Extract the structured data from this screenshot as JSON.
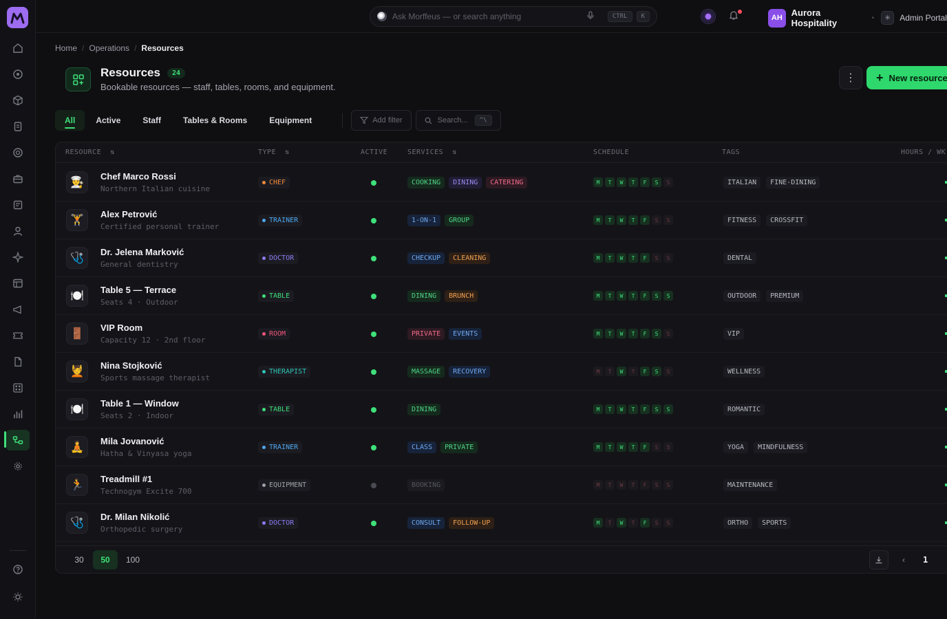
{
  "topbar": {
    "search_placeholder": "Ask Morffeus — or search anything",
    "kbd_ctrl": "CTRL",
    "kbd_k": "K",
    "org_initials": "AH",
    "org_name": "Aurora Hospitality",
    "admin_label": "Admin Portal"
  },
  "breadcrumb": {
    "home": "Home",
    "section": "Operations",
    "current": "Resources"
  },
  "header": {
    "title": "Resources",
    "count": "24",
    "subtitle": "Bookable resources — staff, tables, rooms, and equipment.",
    "new_button": "New resource"
  },
  "tabs": [
    "All",
    "Active",
    "Staff",
    "Tables & Rooms",
    "Equipment"
  ],
  "filters": {
    "add_filter": "Add filter",
    "search_placeholder": "Search...",
    "search_kbd": "^\\"
  },
  "table": {
    "headers": {
      "resource": "RESOURCE",
      "type": "TYPE",
      "active": "ACTIVE",
      "services": "SERVICES",
      "schedule": "SCHEDULE",
      "tags": "TAGS",
      "hours": "HOURS / WK"
    },
    "days": [
      "M",
      "T",
      "W",
      "T",
      "F",
      "S",
      "S"
    ],
    "rows": [
      {
        "name": "Chef Marco Rossi",
        "desc": "Northern Italian cuisine",
        "avatar": "👨‍🍳",
        "type": "CHEF",
        "type_color": "#f08a3c",
        "active": true,
        "services": [
          {
            "label": "COOKING",
            "tone": "green"
          },
          {
            "label": "DINING",
            "tone": "purple"
          },
          {
            "label": "CATERING",
            "tone": "pink"
          }
        ],
        "schedule": [
          1,
          1,
          1,
          1,
          1,
          1,
          0
        ],
        "tags": [
          "ITALIAN",
          "FINE-DINING"
        ]
      },
      {
        "name": "Alex Petrović",
        "desc": "Certified personal trainer",
        "avatar": "🏋️",
        "type": "TRAINER",
        "type_color": "#4ea8f0",
        "active": true,
        "services": [
          {
            "label": "1-ON-1",
            "tone": "blue"
          },
          {
            "label": "GROUP",
            "tone": "green"
          }
        ],
        "schedule": [
          1,
          1,
          1,
          1,
          1,
          0,
          0
        ],
        "tags": [
          "FITNESS",
          "CROSSFIT"
        ]
      },
      {
        "name": "Dr. Jelena Marković",
        "desc": "General dentistry",
        "avatar": "🩺",
        "type": "DOCTOR",
        "type_color": "#8c7cf5",
        "active": true,
        "services": [
          {
            "label": "CHECKUP",
            "tone": "blue"
          },
          {
            "label": "CLEANING",
            "tone": "orange"
          }
        ],
        "schedule": [
          1,
          1,
          1,
          1,
          1,
          0,
          0
        ],
        "tags": [
          "DENTAL"
        ]
      },
      {
        "name": "Table 5 — Terrace",
        "desc": "Seats 4 · Outdoor",
        "avatar": "🍽️",
        "type": "TABLE",
        "type_color": "#3ee07a",
        "active": true,
        "services": [
          {
            "label": "DINING",
            "tone": "green"
          },
          {
            "label": "BRUNCH",
            "tone": "orange"
          }
        ],
        "schedule": [
          1,
          1,
          1,
          1,
          1,
          1,
          1
        ],
        "tags": [
          "OUTDOOR",
          "PREMIUM"
        ]
      },
      {
        "name": "VIP Room",
        "desc": "Capacity 12 · 2nd floor",
        "avatar": "🚪",
        "type": "ROOM",
        "type_color": "#f0567a",
        "active": true,
        "services": [
          {
            "label": "PRIVATE",
            "tone": "pink"
          },
          {
            "label": "EVENTS",
            "tone": "blue"
          }
        ],
        "schedule": [
          1,
          1,
          1,
          1,
          1,
          1,
          0
        ],
        "tags": [
          "VIP"
        ]
      },
      {
        "name": "Nina Stojković",
        "desc": "Sports massage therapist",
        "avatar": "💆",
        "type": "THERAPIST",
        "type_color": "#2ec4b6",
        "active": true,
        "services": [
          {
            "label": "MASSAGE",
            "tone": "green"
          },
          {
            "label": "RECOVERY",
            "tone": "blue"
          }
        ],
        "schedule": [
          0,
          0,
          1,
          0,
          1,
          1,
          0
        ],
        "tags": [
          "WELLNESS"
        ]
      },
      {
        "name": "Table 1 — Window",
        "desc": "Seats 2 · Indoor",
        "avatar": "🍽️",
        "type": "TABLE",
        "type_color": "#3ee07a",
        "active": true,
        "services": [
          {
            "label": "DINING",
            "tone": "green"
          }
        ],
        "schedule": [
          1,
          1,
          1,
          1,
          1,
          1,
          1
        ],
        "tags": [
          "ROMANTIC"
        ]
      },
      {
        "name": "Mila Jovanović",
        "desc": "Hatha & Vinyasa yoga",
        "avatar": "🧘",
        "type": "TRAINER",
        "type_color": "#4ea8f0",
        "active": true,
        "services": [
          {
            "label": "CLASS",
            "tone": "blue"
          },
          {
            "label": "PRIVATE",
            "tone": "green"
          }
        ],
        "schedule": [
          1,
          1,
          1,
          1,
          1,
          0,
          0
        ],
        "tags": [
          "YOGA",
          "MINDFULNESS"
        ]
      },
      {
        "name": "Treadmill #1",
        "desc": "Technogym Excite 700",
        "avatar": "🏃",
        "type": "EQUIPMENT",
        "type_color": "#a0a0aa",
        "active": false,
        "services": [
          {
            "label": "BOOKING",
            "tone": "muted"
          }
        ],
        "schedule": [
          0,
          0,
          0,
          0,
          0,
          0,
          0
        ],
        "tags": [
          "MAINTENANCE"
        ]
      },
      {
        "name": "Dr. Milan Nikolić",
        "desc": "Orthopedic surgery",
        "avatar": "🩺",
        "type": "DOCTOR",
        "type_color": "#8c7cf5",
        "active": true,
        "services": [
          {
            "label": "CONSULT",
            "tone": "blue"
          },
          {
            "label": "FOLLOW-UP",
            "tone": "orange"
          }
        ],
        "schedule": [
          1,
          0,
          1,
          0,
          1,
          0,
          0
        ],
        "tags": [
          "ORTHO",
          "SPORTS"
        ]
      }
    ]
  },
  "pagination": {
    "sizes": [
      "30",
      "50",
      "100"
    ],
    "active_size": "50",
    "page": "1"
  },
  "colors": {
    "accent": "#3ee07a",
    "brand": "#9d6cf0"
  }
}
